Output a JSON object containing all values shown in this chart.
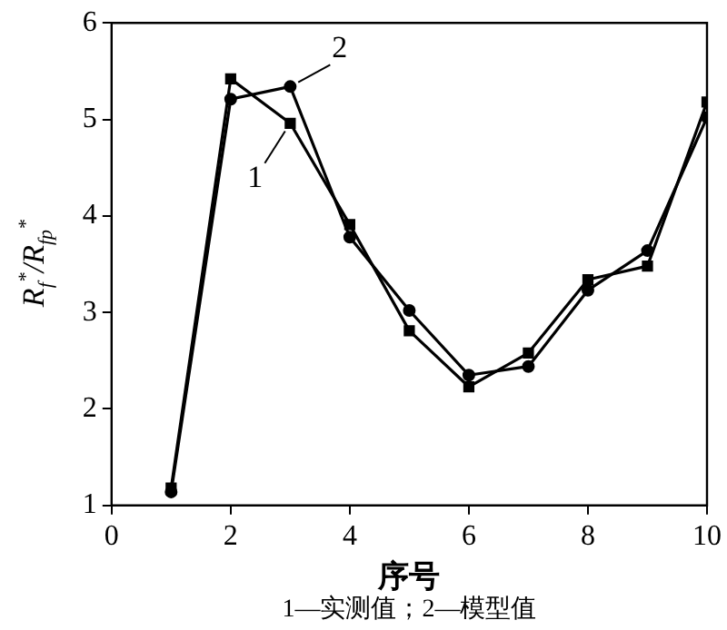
{
  "chart_data": {
    "type": "line",
    "xlabel": "序号",
    "ylabel": "R$_{f}$$^{*}$/R$_{fp}$$^{*}$",
    "x": [
      1,
      2,
      3,
      4,
      5,
      6,
      7,
      8,
      9,
      10
    ],
    "series": [
      {
        "name": "1",
        "color": "#000000",
        "marker": "square",
        "values": [
          1.18,
          5.42,
          4.96,
          3.91,
          2.81,
          2.23,
          2.58,
          3.34,
          3.48,
          5.18
        ]
      },
      {
        "name": "2",
        "color": "#000000",
        "marker": "circle",
        "values": [
          1.14,
          5.21,
          5.34,
          3.78,
          3.02,
          2.35,
          2.44,
          3.23,
          3.64,
          5.02
        ]
      }
    ],
    "xlim": [
      0,
      10
    ],
    "xticks": [
      0,
      2,
      4,
      6,
      8,
      10
    ],
    "ylim": [
      1,
      6
    ],
    "yticks": [
      1,
      2,
      3,
      4,
      5,
      6
    ],
    "grid": false,
    "legend": "top left",
    "line_style": "solid",
    "annotations": [
      "1—实测值；2—模型值"
    ]
  }
}
